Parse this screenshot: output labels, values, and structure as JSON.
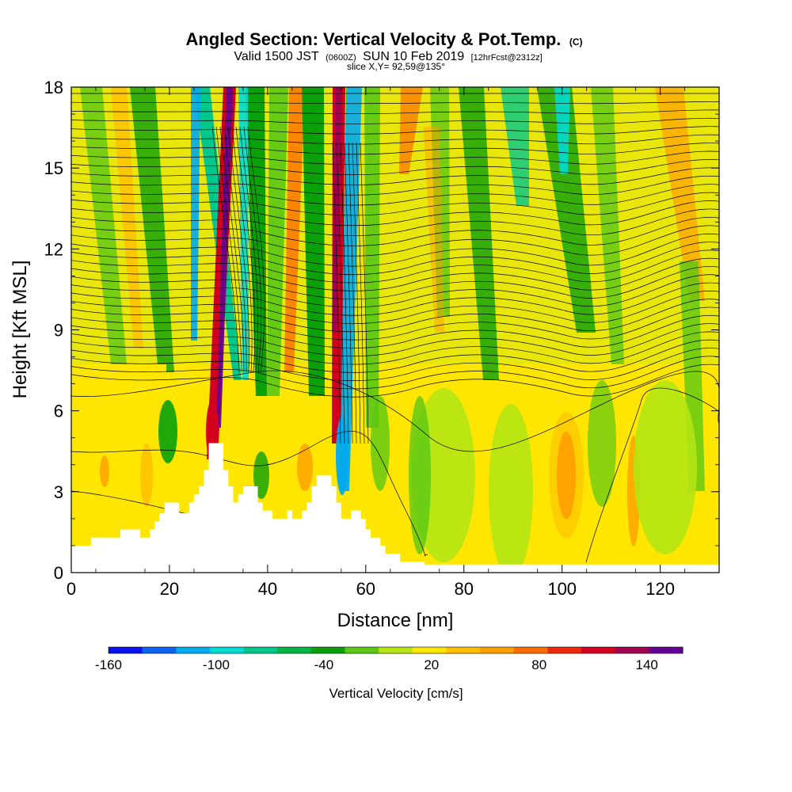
{
  "title": {
    "main": "Angled Section: Vertical Velocity & Pot.Temp.",
    "main_suffix": "(C)",
    "valid_prefix": "Valid 1500 JST",
    "valid_utc": "(0600Z)",
    "valid_date": "SUN 10 Feb 2019",
    "forecast": "[12hrFcst@2312z]",
    "slice": "slice X,Y= 92,59@135°"
  },
  "chart_data": {
    "type": "heatmap",
    "xlabel": "Distance [nm]",
    "ylabel": "Height [Kft MSL]",
    "xlim": [
      0,
      132
    ],
    "ylim": [
      0,
      18
    ],
    "x_ticks": [
      0,
      20,
      40,
      60,
      80,
      100,
      120
    ],
    "y_ticks": [
      0,
      3,
      6,
      9,
      12,
      15,
      18
    ],
    "colorbar": {
      "label": "Vertical Velocity [cm/s]",
      "tick_labels": [
        "-160",
        "-100",
        "-40",
        "20",
        "80",
        "140"
      ],
      "tick_values": [
        -160,
        -100,
        -40,
        20,
        80,
        140
      ],
      "bin_edges": [
        -160,
        -140,
        -120,
        -100,
        -80,
        -60,
        -40,
        -20,
        0,
        20,
        40,
        60,
        80,
        100,
        120,
        140,
        160
      ],
      "colors": [
        "#0a14f0",
        "#0a64f0",
        "#00aaf0",
        "#00dcd2",
        "#00c88c",
        "#00b446",
        "#0aa00a",
        "#5ac814",
        "#b4e614",
        "#ffe600",
        "#ffbe00",
        "#ffa000",
        "#ff6e00",
        "#f0280a",
        "#d2001e",
        "#a00050",
        "#640096"
      ]
    },
    "terrain_height": [
      [
        0,
        1.0
      ],
      [
        4,
        1.0
      ],
      [
        4,
        1.3
      ],
      [
        10,
        1.3
      ],
      [
        10,
        1.6
      ],
      [
        14,
        1.6
      ],
      [
        14,
        1.3
      ],
      [
        16,
        1.3
      ],
      [
        16,
        1.6
      ],
      [
        17,
        1.6
      ],
      [
        17,
        1.9
      ],
      [
        18,
        1.9
      ],
      [
        18,
        2.2
      ],
      [
        19,
        2.2
      ],
      [
        19,
        2.6
      ],
      [
        22,
        2.6
      ],
      [
        22,
        2.2
      ],
      [
        24,
        2.2
      ],
      [
        24,
        2.6
      ],
      [
        25,
        2.6
      ],
      [
        25,
        2.9
      ],
      [
        26,
        2.9
      ],
      [
        26,
        3.2
      ],
      [
        27,
        3.2
      ],
      [
        27,
        3.8
      ],
      [
        28,
        3.8
      ],
      [
        28,
        4.8
      ],
      [
        31,
        4.8
      ],
      [
        31,
        3.8
      ],
      [
        32,
        3.8
      ],
      [
        32,
        3.2
      ],
      [
        33,
        3.2
      ],
      [
        33,
        2.6
      ],
      [
        34,
        2.6
      ],
      [
        34,
        2.9
      ],
      [
        35,
        2.9
      ],
      [
        35,
        3.2
      ],
      [
        38,
        3.2
      ],
      [
        38,
        2.6
      ],
      [
        39,
        2.6
      ],
      [
        39,
        2.3
      ],
      [
        41,
        2.3
      ],
      [
        41,
        2.0
      ],
      [
        44,
        2.0
      ],
      [
        44,
        2.3
      ],
      [
        45,
        2.3
      ],
      [
        45,
        2.0
      ],
      [
        47,
        2.0
      ],
      [
        47,
        2.3
      ],
      [
        48,
        2.3
      ],
      [
        48,
        2.6
      ],
      [
        49,
        2.6
      ],
      [
        49,
        3.2
      ],
      [
        50,
        3.2
      ],
      [
        50,
        3.6
      ],
      [
        53,
        3.6
      ],
      [
        53,
        3.2
      ],
      [
        54,
        3.2
      ],
      [
        54,
        2.6
      ],
      [
        55,
        2.6
      ],
      [
        55,
        2.0
      ],
      [
        57,
        2.0
      ],
      [
        57,
        2.3
      ],
      [
        59,
        2.3
      ],
      [
        59,
        2.0
      ],
      [
        60,
        2.0
      ],
      [
        60,
        1.6
      ],
      [
        61,
        1.6
      ],
      [
        61,
        1.3
      ],
      [
        63,
        1.3
      ],
      [
        63,
        1.0
      ],
      [
        64,
        1.0
      ],
      [
        64,
        0.7
      ],
      [
        67,
        0.7
      ],
      [
        67,
        0.4
      ],
      [
        72,
        0.4
      ],
      [
        72,
        0.3
      ],
      [
        132,
        0.3
      ]
    ]
  }
}
